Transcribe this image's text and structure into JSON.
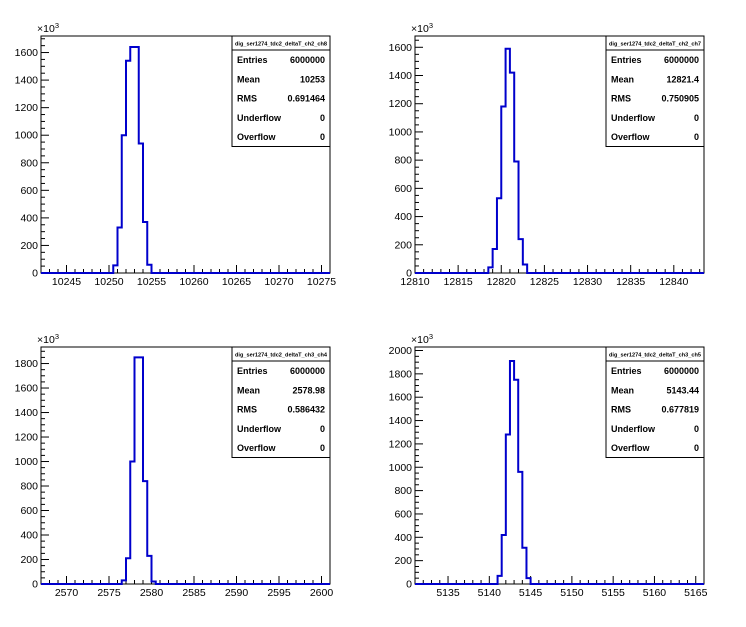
{
  "chart_data": [
    {
      "type": "histogram",
      "title": "",
      "stats_title": "dig_ser1274_tdc2_deltaT_ch2_ch8",
      "stats": [
        {
          "label": "Entries",
          "value": "6000000"
        },
        {
          "label": "Mean",
          "value": "10253"
        },
        {
          "label": "RMS",
          "value": "0.691464"
        },
        {
          "label": "Underflow",
          "value": "0"
        },
        {
          "label": "Overflow",
          "value": "0"
        }
      ],
      "xlim": [
        10242,
        10276
      ],
      "ylim": [
        0,
        1720
      ],
      "y_multiplier": "×10",
      "y_multiplier_exp": "3",
      "xticks": [
        {
          "value": 10245,
          "label": "10245"
        },
        {
          "value": 10250,
          "label": "10250"
        },
        {
          "value": 10255,
          "label": "10255"
        },
        {
          "value": 10260,
          "label": "10260"
        },
        {
          "value": 10265,
          "label": "10265"
        },
        {
          "value": 10270,
          "label": "10270"
        },
        {
          "value": 10275,
          "label": "10275"
        }
      ],
      "yticks": [
        {
          "value": 0,
          "label": "0"
        },
        {
          "value": 200,
          "label": "200"
        },
        {
          "value": 400,
          "label": "400"
        },
        {
          "value": 600,
          "label": "600"
        },
        {
          "value": 800,
          "label": "800"
        },
        {
          "value": 1000,
          "label": "1000"
        },
        {
          "value": 1200,
          "label": "1200"
        },
        {
          "value": 1400,
          "label": "1400"
        },
        {
          "value": 1600,
          "label": "1600"
        }
      ],
      "bins": [
        {
          "x0": 10250.5,
          "x1": 10251.0,
          "y": 55
        },
        {
          "x0": 10251.0,
          "x1": 10251.5,
          "y": 330
        },
        {
          "x0": 10251.5,
          "x1": 10252.0,
          "y": 1000
        },
        {
          "x0": 10252.0,
          "x1": 10252.5,
          "y": 1540
        },
        {
          "x0": 10252.5,
          "x1": 10253.0,
          "y": 1640
        },
        {
          "x0": 10253.0,
          "x1": 10253.5,
          "y": 1640
        },
        {
          "x0": 10253.5,
          "x1": 10254.0,
          "y": 940
        },
        {
          "x0": 10254.0,
          "x1": 10254.5,
          "y": 370
        },
        {
          "x0": 10254.5,
          "x1": 10255.0,
          "y": 60
        }
      ]
    },
    {
      "type": "histogram",
      "title": "",
      "stats_title": "dig_ser1274_tdc2_deltaT_ch2_ch7",
      "stats": [
        {
          "label": "Entries",
          "value": "6000000"
        },
        {
          "label": "Mean",
          "value": "12821.4"
        },
        {
          "label": "RMS",
          "value": "0.750905"
        },
        {
          "label": "Underflow",
          "value": "0"
        },
        {
          "label": "Overflow",
          "value": "0"
        }
      ],
      "xlim": [
        12810,
        12843.5
      ],
      "ylim": [
        0,
        1680
      ],
      "y_multiplier": "×10",
      "y_multiplier_exp": "3",
      "xticks": [
        {
          "value": 12810,
          "label": "12810"
        },
        {
          "value": 12815,
          "label": "12815"
        },
        {
          "value": 12820,
          "label": "12820"
        },
        {
          "value": 12825,
          "label": "12825"
        },
        {
          "value": 12830,
          "label": "12830"
        },
        {
          "value": 12835,
          "label": "12835"
        },
        {
          "value": 12840,
          "label": "12840"
        }
      ],
      "yticks": [
        {
          "value": 0,
          "label": "0"
        },
        {
          "value": 200,
          "label": "200"
        },
        {
          "value": 400,
          "label": "400"
        },
        {
          "value": 600,
          "label": "600"
        },
        {
          "value": 800,
          "label": "800"
        },
        {
          "value": 1000,
          "label": "1000"
        },
        {
          "value": 1200,
          "label": "1200"
        },
        {
          "value": 1400,
          "label": "1400"
        },
        {
          "value": 1600,
          "label": "1600"
        }
      ],
      "bins": [
        {
          "x0": 12818.5,
          "x1": 12819.0,
          "y": 40
        },
        {
          "x0": 12819.0,
          "x1": 12819.5,
          "y": 170
        },
        {
          "x0": 12819.5,
          "x1": 12820.0,
          "y": 530
        },
        {
          "x0": 12820.0,
          "x1": 12820.5,
          "y": 1180
        },
        {
          "x0": 12820.5,
          "x1": 12821.0,
          "y": 1590
        },
        {
          "x0": 12821.0,
          "x1": 12821.5,
          "y": 1420
        },
        {
          "x0": 12821.5,
          "x1": 12822.0,
          "y": 790
        },
        {
          "x0": 12822.0,
          "x1": 12822.5,
          "y": 240
        },
        {
          "x0": 12822.5,
          "x1": 12823.0,
          "y": 60
        }
      ]
    },
    {
      "type": "histogram",
      "title": "",
      "stats_title": "dig_ser1274_tdc2_deltaT_ch3_ch4",
      "stats": [
        {
          "label": "Entries",
          "value": "6000000"
        },
        {
          "label": "Mean",
          "value": "2578.98"
        },
        {
          "label": "RMS",
          "value": "0.586432"
        },
        {
          "label": "Underflow",
          "value": "0"
        },
        {
          "label": "Overflow",
          "value": "0"
        }
      ],
      "xlim": [
        2567,
        2601
      ],
      "ylim": [
        0,
        1935
      ],
      "y_multiplier": "×10",
      "y_multiplier_exp": "3",
      "xticks": [
        {
          "value": 2570,
          "label": "2570"
        },
        {
          "value": 2575,
          "label": "2575"
        },
        {
          "value": 2580,
          "label": "2580"
        },
        {
          "value": 2585,
          "label": "2585"
        },
        {
          "value": 2590,
          "label": "2590"
        },
        {
          "value": 2595,
          "label": "2595"
        },
        {
          "value": 2600,
          "label": "2600"
        }
      ],
      "yticks": [
        {
          "value": 0,
          "label": "0"
        },
        {
          "value": 200,
          "label": "200"
        },
        {
          "value": 400,
          "label": "400"
        },
        {
          "value": 600,
          "label": "600"
        },
        {
          "value": 800,
          "label": "800"
        },
        {
          "value": 1000,
          "label": "1000"
        },
        {
          "value": 1200,
          "label": "1200"
        },
        {
          "value": 1400,
          "label": "1400"
        },
        {
          "value": 1600,
          "label": "1600"
        },
        {
          "value": 1800,
          "label": "1800"
        }
      ],
      "bins": [
        {
          "x0": 2576.5,
          "x1": 2577.0,
          "y": 30
        },
        {
          "x0": 2577.0,
          "x1": 2577.5,
          "y": 210
        },
        {
          "x0": 2577.5,
          "x1": 2578.0,
          "y": 1000
        },
        {
          "x0": 2578.0,
          "x1": 2578.5,
          "y": 1850
        },
        {
          "x0": 2578.5,
          "x1": 2579.0,
          "y": 1850
        },
        {
          "x0": 2579.0,
          "x1": 2579.5,
          "y": 840
        },
        {
          "x0": 2579.5,
          "x1": 2580.0,
          "y": 230
        },
        {
          "x0": 2580.0,
          "x1": 2580.5,
          "y": 20
        }
      ]
    },
    {
      "type": "histogram",
      "title": "",
      "stats_title": "dig_ser1274_tdc2_deltaT_ch3_ch5",
      "stats": [
        {
          "label": "Entries",
          "value": "6000000"
        },
        {
          "label": "Mean",
          "value": "5143.44"
        },
        {
          "label": "RMS",
          "value": "0.677819"
        },
        {
          "label": "Underflow",
          "value": "0"
        },
        {
          "label": "Overflow",
          "value": "0"
        }
      ],
      "xlim": [
        5131,
        5166
      ],
      "ylim": [
        0,
        2030
      ],
      "y_multiplier": "×10",
      "y_multiplier_exp": "3",
      "xticks": [
        {
          "value": 5135,
          "label": "5135"
        },
        {
          "value": 5140,
          "label": "5140"
        },
        {
          "value": 5145,
          "label": "5145"
        },
        {
          "value": 5150,
          "label": "5150"
        },
        {
          "value": 5155,
          "label": "5155"
        },
        {
          "value": 5160,
          "label": "5160"
        },
        {
          "value": 5165,
          "label": "5165"
        }
      ],
      "yticks": [
        {
          "value": 0,
          "label": "0"
        },
        {
          "value": 200,
          "label": "200"
        },
        {
          "value": 400,
          "label": "400"
        },
        {
          "value": 600,
          "label": "600"
        },
        {
          "value": 800,
          "label": "800"
        },
        {
          "value": 1000,
          "label": "1000"
        },
        {
          "value": 1200,
          "label": "1200"
        },
        {
          "value": 1400,
          "label": "1400"
        },
        {
          "value": 1600,
          "label": "1600"
        },
        {
          "value": 1800,
          "label": "1800"
        },
        {
          "value": 2000,
          "label": "2000"
        }
      ],
      "bins": [
        {
          "x0": 5141.0,
          "x1": 5141.5,
          "y": 70
        },
        {
          "x0": 5141.5,
          "x1": 5142.0,
          "y": 420
        },
        {
          "x0": 5142.0,
          "x1": 5142.5,
          "y": 1280
        },
        {
          "x0": 5142.5,
          "x1": 5143.0,
          "y": 1910
        },
        {
          "x0": 5143.0,
          "x1": 5143.5,
          "y": 1750
        },
        {
          "x0": 5143.5,
          "x1": 5144.0,
          "y": 960
        },
        {
          "x0": 5144.0,
          "x1": 5144.5,
          "y": 310
        },
        {
          "x0": 5144.5,
          "x1": 5145.0,
          "y": 50
        }
      ]
    }
  ],
  "style": {
    "line_color": "#0000cc",
    "axis_color": "#000000",
    "background": "#ffffff"
  }
}
